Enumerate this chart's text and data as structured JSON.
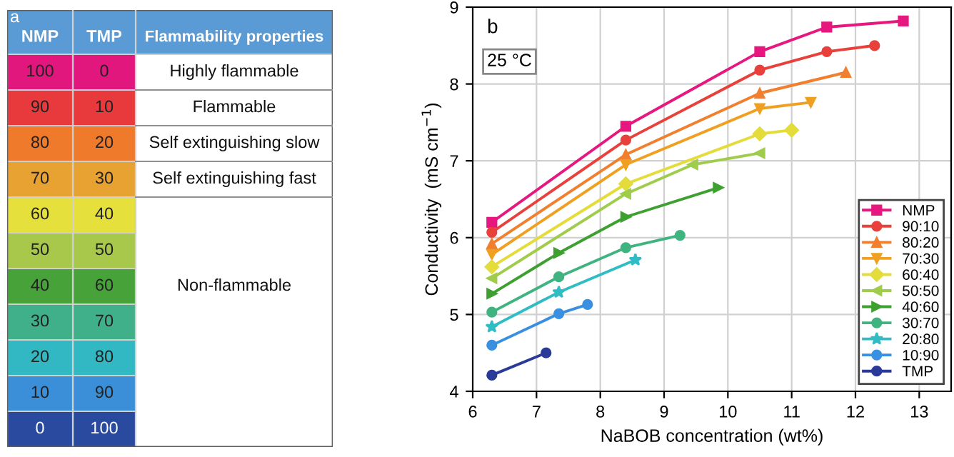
{
  "chart_data": [
    {
      "type": "heatmap",
      "title": "a",
      "ylabel": "NMP",
      "categories": [
        "TMP"
      ],
      "y2label": "Flammability properties",
      "y_categories": [
        "100",
        "90",
        "80",
        "70",
        "60",
        "50",
        "40",
        "30",
        "20",
        "10",
        "0"
      ],
      "y2_categories": [
        "Highly flammable",
        "Flammable",
        "Self extinguishing slow",
        "Self extinguishing fast",
        null,
        null,
        "Non-flammable",
        null,
        null,
        null,
        null
      ],
      "data_labels": true,
      "cells": [
        [
          0
        ],
        [
          10
        ],
        [
          20
        ],
        [
          30
        ],
        [
          40
        ],
        [
          50
        ],
        [
          60
        ],
        [
          70
        ],
        [
          80
        ],
        [
          90
        ],
        [
          100
        ]
      ],
      "colors": [
        "#e2177d",
        "#e83a3c",
        "#f07a2c",
        "#e8a232",
        "#e6e03c",
        "#a8c84c",
        "#48a23a",
        "#40b08a",
        "#32b8c2",
        "#3a8fd8",
        "#2a4aa0"
      ]
    },
    {
      "type": "line",
      "title": "b",
      "xlabel": "NaBOB concentration (wt%)",
      "ylabel": "Conductivity  (mS cm$^{−1}$)",
      "annotations": [
        "25 °C"
      ],
      "xlim": [
        6,
        13.5
      ],
      "ylim": [
        4,
        9
      ],
      "xticks": [
        6,
        7,
        8,
        9,
        10,
        11,
        12,
        13
      ],
      "yticks": [
        4,
        5,
        6,
        7,
        8,
        9
      ],
      "grid": true,
      "legend": "bottom right",
      "series": [
        {
          "name": "NMP",
          "color": "#e6177f",
          "marker": "square",
          "x": [
            6.3,
            8.4,
            10.5,
            11.55,
            12.75
          ],
          "values": [
            6.2,
            7.45,
            8.42,
            8.74,
            8.82
          ]
        },
        {
          "name": "90:10",
          "color": "#e8403a",
          "marker": "circle",
          "x": [
            6.3,
            8.4,
            10.5,
            11.55,
            12.3
          ],
          "values": [
            6.07,
            7.27,
            8.18,
            8.42,
            8.5
          ]
        },
        {
          "name": "80:20",
          "color": "#f08030",
          "marker": "triangle",
          "x": [
            6.3,
            8.4,
            10.5,
            11.85
          ],
          "values": [
            5.92,
            7.08,
            7.88,
            8.15
          ]
        },
        {
          "name": "70:30",
          "color": "#f0a020",
          "marker": "triangle-down",
          "x": [
            6.3,
            8.4,
            10.5,
            11.3
          ],
          "values": [
            5.78,
            6.95,
            7.68,
            7.76
          ]
        },
        {
          "name": "60:40",
          "color": "#e4dc3a",
          "marker": "diamond",
          "x": [
            6.3,
            8.4,
            10.5,
            11.0
          ],
          "values": [
            5.62,
            6.7,
            7.35,
            7.4
          ]
        },
        {
          "name": "50:50",
          "color": "#a0cc4c",
          "marker": "triangle-left",
          "x": [
            6.3,
            8.4,
            9.45,
            10.5
          ],
          "values": [
            5.47,
            6.57,
            6.95,
            7.1
          ]
        },
        {
          "name": "40:60",
          "color": "#3ea030",
          "marker": "triangle-right",
          "x": [
            6.3,
            7.35,
            8.4,
            9.85
          ],
          "values": [
            5.27,
            5.8,
            6.27,
            6.65
          ]
        },
        {
          "name": "30:70",
          "color": "#40b480",
          "marker": "circle",
          "x": [
            6.3,
            7.35,
            8.4,
            9.25
          ],
          "values": [
            5.03,
            5.49,
            5.87,
            6.03
          ]
        },
        {
          "name": "20:80",
          "color": "#30bcc4",
          "marker": "star",
          "x": [
            6.3,
            7.35,
            8.55
          ],
          "values": [
            4.84,
            5.29,
            5.71
          ]
        },
        {
          "name": "10:90",
          "color": "#3a90e0",
          "marker": "circle",
          "x": [
            6.3,
            7.35,
            7.8
          ],
          "values": [
            4.6,
            5.01,
            5.13
          ]
        },
        {
          "name": "TMP",
          "color": "#2a3a98",
          "marker": "circle",
          "x": [
            6.3,
            7.15
          ],
          "values": [
            4.21,
            4.5
          ]
        }
      ]
    }
  ]
}
